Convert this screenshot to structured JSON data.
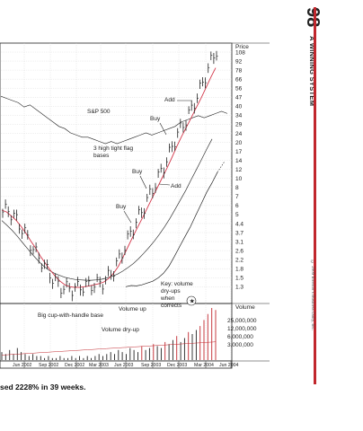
{
  "page": {
    "page_number": "98",
    "running_head": "A WINNING SYSTEM",
    "copyright": "© 2009 Investor's Business Daily, Inc.",
    "caption": "sed 2228% in 39 weeks."
  },
  "colors": {
    "price_bars": "#222222",
    "ma_fast": "#d4374a",
    "ma_slow": "#333333",
    "volume_red": "#c1272d",
    "grid": "#d6d6d6",
    "accent_rule": "#c1272d"
  },
  "chart_data": [
    {
      "type": "line",
      "subtype": "stock price chart with moving averages and relative strength line (log scale)",
      "title": "",
      "ylabel": "Price",
      "y_scale": "log",
      "ylim": [
        1.3,
        108
      ],
      "y_ticks": [
        108,
        92,
        78,
        66,
        56,
        47,
        40,
        34,
        29,
        24,
        20,
        17,
        14,
        12,
        10,
        8,
        7,
        6,
        5,
        4.4,
        3.7,
        3.1,
        2.6,
        2.2,
        1.8,
        1.5,
        1.3
      ],
      "x_ticks": [
        "Jun 2002",
        "Sep 2002",
        "Dec 2002",
        "Mar 2003",
        "Jun 2003",
        "Sep 2003",
        "Dec 2003",
        "Mar 2004",
        "Jun 2004"
      ],
      "grid": true,
      "series": [
        {
          "name": "S&P 500",
          "values": [
            52,
            51,
            50,
            49,
            47,
            48,
            46,
            44,
            42,
            40,
            38,
            37,
            35,
            34,
            33,
            33,
            32,
            31,
            30,
            31,
            30,
            31,
            32,
            33,
            34,
            35,
            34,
            35,
            36,
            37,
            38,
            40,
            41,
            42,
            43,
            42,
            43,
            44,
            45,
            44
          ]
        }
      ],
      "price_path": [
        5.6,
        5.9,
        5.3,
        4.8,
        4.1,
        3.6,
        3.0,
        2.6,
        2.3,
        2.0,
        1.75,
        1.55,
        1.45,
        1.42,
        1.4,
        1.42,
        1.45,
        1.47,
        1.5,
        1.52,
        1.55,
        1.6,
        1.8,
        2.0,
        2.4,
        2.9,
        3.6,
        4.3,
        5.2,
        6.0,
        7.3,
        8.7,
        10.5,
        12.5,
        15.0,
        19.0,
        23.0,
        27.0,
        31.0,
        37.0,
        46.0,
        56.0,
        70.0,
        88.0,
        105.0
      ],
      "ma_fast_path": [
        5.8,
        5.6,
        5.2,
        4.8,
        4.3,
        3.8,
        3.3,
        2.9,
        2.5,
        2.2,
        1.95,
        1.75,
        1.6,
        1.5,
        1.45,
        1.43,
        1.43,
        1.45,
        1.47,
        1.5,
        1.53,
        1.58,
        1.68,
        1.85,
        2.1,
        2.5,
        3.0,
        3.6,
        4.3,
        5.1,
        6.1,
        7.3,
        8.7,
        10.4,
        12.4,
        15.0,
        18.3,
        22.0,
        26.0,
        31.0,
        37.0,
        44.0,
        53.0,
        64.0,
        76.0
      ],
      "ma_slow_path": [
        4.8,
        4.4,
        4.0,
        3.6,
        3.2,
        2.85,
        2.55,
        2.3,
        2.1,
        1.95,
        1.85,
        1.78,
        1.72,
        1.68,
        1.65,
        1.64,
        1.63,
        1.63,
        1.64,
        1.66,
        1.7,
        1.75,
        1.82,
        1.92,
        2.05,
        2.2,
        2.4,
        2.65,
        2.95,
        3.3,
        3.75,
        4.3,
        5.0,
        5.9,
        7.0,
        8.3,
        10.0,
        12.0,
        14.5,
        17.5,
        21.0
      ],
      "annotations": [
        {
          "label": "S&P 500"
        },
        {
          "label": "Add"
        },
        {
          "label": "Buy"
        },
        {
          "label": "3 high tight flag bases"
        },
        {
          "label": "Buy"
        },
        {
          "label": "Add"
        },
        {
          "label": "Buy"
        },
        {
          "label": "Key: volume dry-ups when corrects"
        }
      ]
    },
    {
      "type": "bar",
      "subtype": "volume",
      "ylabel": "Volume",
      "y_ticks": [
        "25,000,000",
        "12,000,000",
        "6,000,000",
        "3,000,000"
      ],
      "values": [
        4,
        3,
        5,
        3,
        6,
        4,
        3,
        2,
        3,
        2,
        2,
        1,
        2,
        1,
        1,
        2,
        1,
        1,
        2,
        1,
        2,
        1,
        2,
        1,
        2,
        3,
        2,
        3,
        4,
        3,
        5,
        4,
        3,
        6,
        5,
        4,
        7,
        5,
        6,
        8,
        7,
        6,
        9,
        8,
        10,
        12,
        9,
        11,
        14,
        13,
        15,
        17,
        20,
        23,
        26,
        25
      ],
      "annotations": [
        {
          "label": "Big cup-with-handle base"
        },
        {
          "label": "Volume up"
        },
        {
          "label": "Volume dry-up"
        }
      ]
    }
  ]
}
